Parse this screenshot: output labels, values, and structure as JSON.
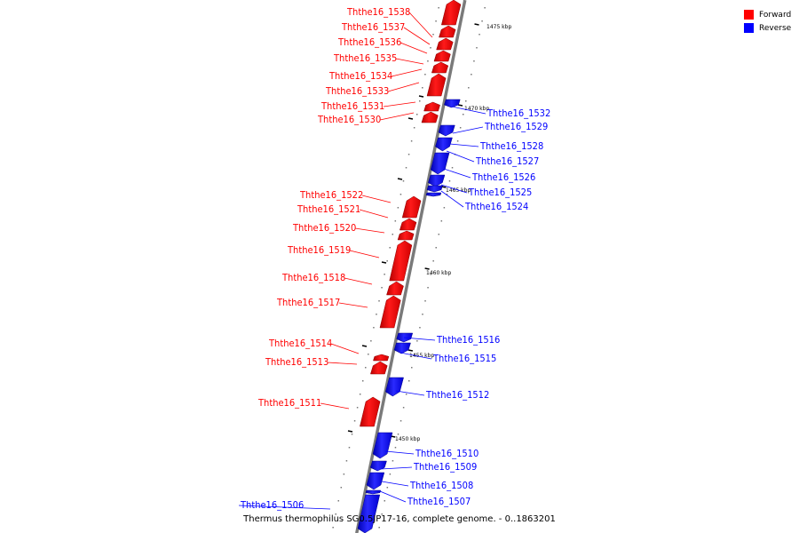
{
  "legend": {
    "forward_label": "Forward",
    "reverse_label": "Reverse",
    "forward_color": "#ff0000",
    "reverse_color": "#0000ff"
  },
  "caption": "Thermus thermophilus SG0.5JP17-16, complete genome. - 0..1863201",
  "scale_ticks": [
    "1475 kbp",
    "1470 kbp",
    "1465 kbp",
    "1460 kbp",
    "1455 kbp",
    "1450 kbp"
  ],
  "genes": [
    {
      "name": "Ththe16_1538",
      "strand": "forward"
    },
    {
      "name": "Ththe16_1537",
      "strand": "forward"
    },
    {
      "name": "Ththe16_1536",
      "strand": "forward"
    },
    {
      "name": "Ththe16_1535",
      "strand": "forward"
    },
    {
      "name": "Ththe16_1534",
      "strand": "forward"
    },
    {
      "name": "Ththe16_1533",
      "strand": "forward"
    },
    {
      "name": "Ththe16_1532",
      "strand": "reverse"
    },
    {
      "name": "Ththe16_1531",
      "strand": "forward"
    },
    {
      "name": "Ththe16_1530",
      "strand": "forward"
    },
    {
      "name": "Ththe16_1529",
      "strand": "reverse"
    },
    {
      "name": "Ththe16_1528",
      "strand": "reverse"
    },
    {
      "name": "Ththe16_1527",
      "strand": "reverse"
    },
    {
      "name": "Ththe16_1526",
      "strand": "reverse"
    },
    {
      "name": "Ththe16_1525",
      "strand": "reverse"
    },
    {
      "name": "Ththe16_1524",
      "strand": "reverse"
    },
    {
      "name": "Ththe16_1522",
      "strand": "forward"
    },
    {
      "name": "Ththe16_1521",
      "strand": "forward"
    },
    {
      "name": "Ththe16_1520",
      "strand": "forward"
    },
    {
      "name": "Ththe16_1519",
      "strand": "forward"
    },
    {
      "name": "Ththe16_1518",
      "strand": "forward"
    },
    {
      "name": "Ththe16_1517",
      "strand": "forward"
    },
    {
      "name": "Ththe16_1516",
      "strand": "reverse"
    },
    {
      "name": "Ththe16_1515",
      "strand": "reverse"
    },
    {
      "name": "Ththe16_1514",
      "strand": "forward"
    },
    {
      "name": "Ththe16_1513",
      "strand": "forward"
    },
    {
      "name": "Ththe16_1512",
      "strand": "reverse"
    },
    {
      "name": "Ththe16_1511",
      "strand": "forward"
    },
    {
      "name": "Ththe16_1510",
      "strand": "reverse"
    },
    {
      "name": "Ththe16_1509",
      "strand": "reverse"
    },
    {
      "name": "Ththe16_1508",
      "strand": "reverse"
    },
    {
      "name": "Ththe16_1507",
      "strand": "reverse"
    },
    {
      "name": "Ththe16_1506",
      "strand": "reverse"
    }
  ]
}
